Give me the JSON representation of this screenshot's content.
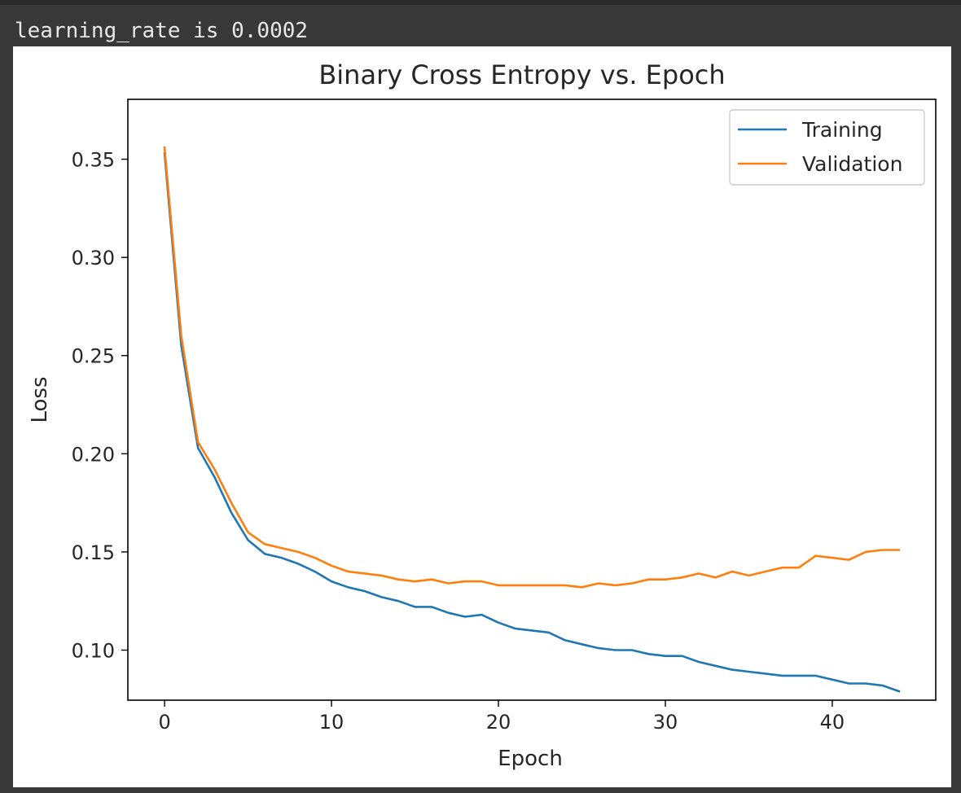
{
  "output_line": "learning_rate is 0.0002",
  "chart_data": {
    "type": "line",
    "title": "Binary Cross Entropy vs. Epoch",
    "xlabel": "Epoch",
    "ylabel": "Loss",
    "xlim": [
      -2.2,
      46.2
    ],
    "ylim": [
      0.0745,
      0.3805
    ],
    "xticks": [
      0,
      10,
      20,
      30,
      40
    ],
    "xtick_labels": [
      "0",
      "10",
      "20",
      "30",
      "40"
    ],
    "yticks": [
      0.1,
      0.15,
      0.2,
      0.25,
      0.3,
      0.35
    ],
    "ytick_labels": [
      "0.10",
      "0.15",
      "0.20",
      "0.25",
      "0.30",
      "0.35"
    ],
    "grid": false,
    "legend_position": "top-right",
    "x": [
      0,
      1,
      2,
      3,
      4,
      5,
      6,
      7,
      8,
      9,
      10,
      11,
      12,
      13,
      14,
      15,
      16,
      17,
      18,
      19,
      20,
      21,
      22,
      23,
      24,
      25,
      26,
      27,
      28,
      29,
      30,
      31,
      32,
      33,
      34,
      35,
      36,
      37,
      38,
      39,
      40,
      41,
      42,
      43,
      44
    ],
    "series": [
      {
        "name": "Training",
        "color": "#1f77b4",
        "values": [
          0.353,
          0.255,
          0.203,
          0.188,
          0.17,
          0.156,
          0.149,
          0.147,
          0.144,
          0.14,
          0.135,
          0.132,
          0.13,
          0.127,
          0.125,
          0.122,
          0.122,
          0.119,
          0.117,
          0.118,
          0.114,
          0.111,
          0.11,
          0.109,
          0.105,
          0.103,
          0.101,
          0.1,
          0.1,
          0.098,
          0.097,
          0.097,
          0.094,
          0.092,
          0.09,
          0.089,
          0.088,
          0.087,
          0.087,
          0.087,
          0.085,
          0.083,
          0.083,
          0.082,
          0.079
        ]
      },
      {
        "name": "Validation",
        "color": "#ff7f0e",
        "values": [
          0.356,
          0.26,
          0.206,
          0.192,
          0.175,
          0.16,
          0.154,
          0.152,
          0.15,
          0.147,
          0.143,
          0.14,
          0.139,
          0.138,
          0.136,
          0.135,
          0.136,
          0.134,
          0.135,
          0.135,
          0.133,
          0.133,
          0.133,
          0.133,
          0.133,
          0.132,
          0.134,
          0.133,
          0.134,
          0.136,
          0.136,
          0.137,
          0.139,
          0.137,
          0.14,
          0.138,
          0.14,
          0.142,
          0.142,
          0.148,
          0.147,
          0.146,
          0.15,
          0.151,
          0.151
        ]
      }
    ]
  }
}
